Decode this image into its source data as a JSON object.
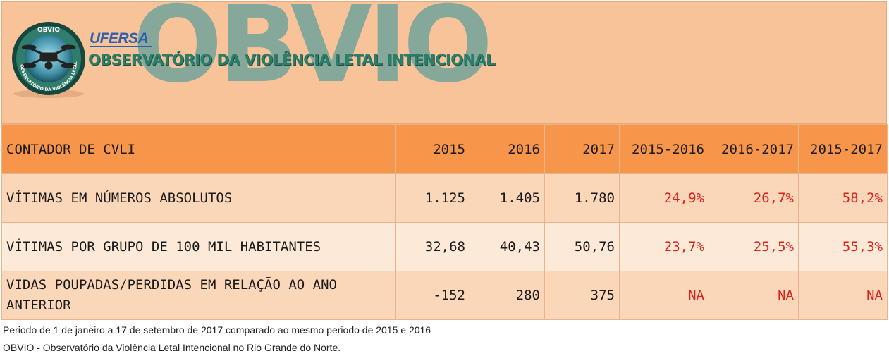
{
  "header": {
    "brand_big": "OBVIO",
    "ufersa": "UFERSA",
    "subtitle": "OBSERVATÓRIO DA VIOLÊNCIA LETAL INTENCIONAL",
    "seal_top": "OBVIO",
    "seal_ring": "OBSERVATÓRIO DA VIOLÊNCIA LETAL INTENCIONAL",
    "colors": {
      "banner": "#f9c39a",
      "brand": "#7fa79c",
      "ufersa": "#2b5fb0",
      "title": "#2b7f6a"
    }
  },
  "table": {
    "header": [
      "CONTADOR DE CVLI",
      "2015",
      "2016",
      "2017",
      "2015-2016",
      "2016-2017",
      "2015-2017"
    ],
    "rows": [
      {
        "label": "VÍTIMAS EM NÚMEROS ABSOLUTOS",
        "values": [
          "1.125",
          "1.405",
          "1.780"
        ],
        "changes": [
          "24,9%",
          "26,7%",
          "58,2%"
        ]
      },
      {
        "label": "VÍTIMAS POR GRUPO DE 100 MIL HABITANTES",
        "values": [
          "32,68",
          "40,43",
          "50,76"
        ],
        "changes": [
          "23,7%",
          "25,5%",
          "55,3%"
        ]
      },
      {
        "label": "VIDAS POUPADAS/PERDIDAS EM RELAÇÃO AO ANO ANTERIOR",
        "values": [
          "-152",
          "280",
          "375"
        ],
        "changes": [
          "NA",
          "NA",
          "NA"
        ]
      }
    ],
    "colors": {
      "header_bg": "#f7954a",
      "row_bg": "#fbd7b9",
      "row_alt_bg": "#fde9d8",
      "change_text": "#e0201a"
    }
  },
  "footnotes": [
    "Periodo de 1 de janeiro a 17 de setembro de 2017 comparado ao mesmo periodo de 2015 e 2016",
    "OBVIO - Observatório da Violência Letal Intencional no Rio Grande do Norte."
  ]
}
